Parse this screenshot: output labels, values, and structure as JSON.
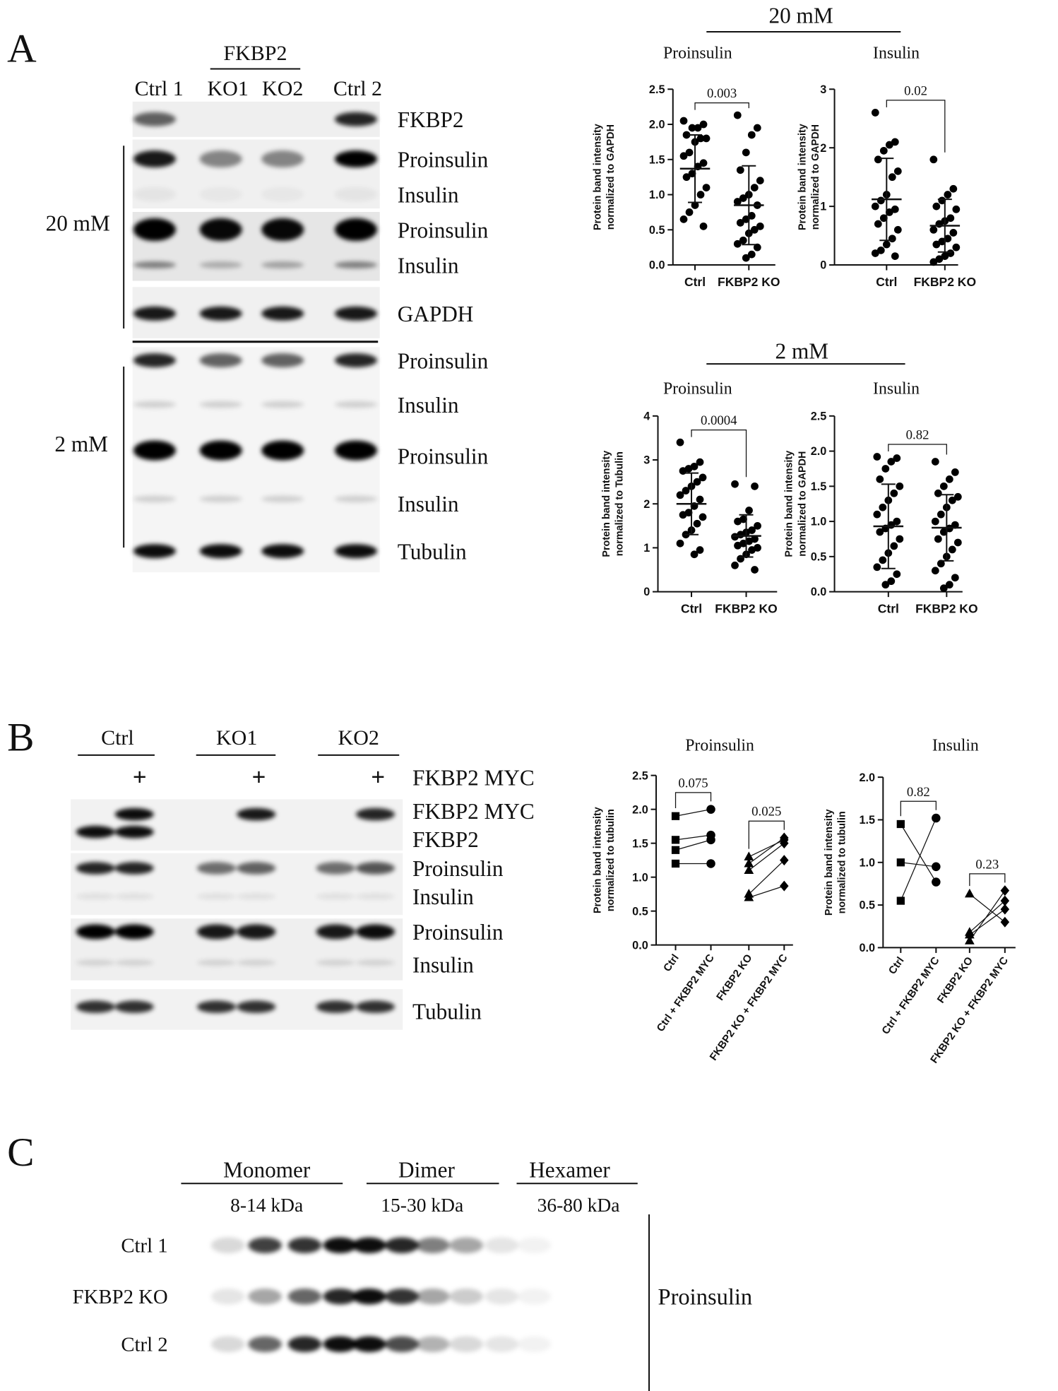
{
  "panel_labels": [
    "A",
    "B",
    "C"
  ],
  "panel_a": {
    "blot": {
      "group": "FKBP2",
      "lanes": [
        "Ctrl 1",
        "KO1",
        "KO2",
        "Ctrl 2"
      ],
      "bands": [
        "FKBP2",
        "Proinsulin",
        "Insulin",
        "Proinsulin",
        "Insulin",
        "GAPDH",
        "Proinsulin",
        "Insulin",
        "Proinsulin",
        "Insulin",
        "Tubulin"
      ],
      "conditions": [
        "20 mM",
        "2 mM"
      ]
    },
    "headers": [
      "20 mM",
      "2 mM"
    ]
  },
  "panel_b": {
    "blot": {
      "lanes": [
        "Ctrl",
        "KO1",
        "KO2"
      ],
      "plus": "+",
      "bands": [
        "FKBP2 MYC",
        "FKBP2 MYC",
        "FKBP2",
        "Proinsulin",
        "Insulin",
        "Proinsulin",
        "Insulin",
        "Tubulin"
      ]
    }
  },
  "panel_c": {
    "columns": [
      "Monomer",
      "Dimer",
      "Hexamer"
    ],
    "sizes": [
      "8-14 kDa",
      "15-30 kDa",
      "36-80 kDa"
    ],
    "rows": [
      "Ctrl 1",
      "FKBP2 KO",
      "Ctrl 2"
    ],
    "band": "Proinsulin"
  },
  "chart_data": [
    {
      "type": "strip",
      "title": "Proinsulin",
      "ylabel": [
        "Protein band intensity",
        "normalized to GAPDH"
      ],
      "categories": [
        "Ctrl",
        "FKBP2 KO"
      ],
      "ylim": [
        0,
        2.5
      ],
      "yticks": [
        {
          "value": 0,
          "label": "0.0"
        },
        0.5,
        {
          "value": 1,
          "label": "1.0"
        },
        1.5,
        {
          "value": 2,
          "label": "2.0"
        },
        2.5
      ],
      "annotation": "0.003",
      "color": "#000000",
      "groups": [
        {
          "values": [
            2.05,
            2.0,
            1.95,
            1.95,
            1.85,
            1.8,
            1.8,
            1.75,
            1.6,
            1.55,
            1.45,
            1.4,
            1.3,
            1.25,
            1.1,
            1.0,
            0.85,
            0.75,
            0.65,
            0.55
          ],
          "mean": 1.37,
          "sd": 0.48
        },
        {
          "values": [
            2.13,
            1.95,
            1.85,
            1.6,
            1.35,
            1.2,
            1.1,
            1.0,
            0.95,
            0.9,
            0.85,
            0.7,
            0.65,
            0.6,
            0.55,
            0.5,
            0.45,
            0.35,
            0.3,
            0.25,
            0.15,
            0.1
          ],
          "mean": 0.85,
          "sd": 0.56
        }
      ]
    },
    {
      "type": "strip",
      "title": "Insulin",
      "ylabel": [
        "Protein band intensity",
        "normalized to GAPDH"
      ],
      "categories": [
        "Ctrl",
        "FKBP2 KO"
      ],
      "ylim": [
        0,
        3
      ],
      "yticks": [
        0,
        1,
        2,
        3
      ],
      "annotation": "0.02",
      "color": "#000000",
      "groups": [
        {
          "values": [
            2.6,
            2.1,
            2.05,
            1.95,
            1.8,
            1.6,
            1.5,
            1.2,
            1.1,
            1.0,
            0.95,
            0.9,
            0.8,
            0.7,
            0.6,
            0.45,
            0.35,
            0.25,
            0.2,
            0.15
          ],
          "mean": 1.12,
          "sd": 0.7
        },
        {
          "values": [
            1.8,
            1.3,
            1.2,
            1.1,
            1.0,
            0.95,
            0.8,
            0.75,
            0.7,
            0.6,
            0.55,
            0.45,
            0.4,
            0.35,
            0.3,
            0.2,
            0.15,
            0.1,
            0.05
          ],
          "mean": 0.67,
          "sd": 0.45
        }
      ]
    },
    {
      "type": "strip",
      "title": "Proinsulin",
      "ylabel": [
        "Protein band intensity",
        "normalized to Tubulin"
      ],
      "categories": [
        "Ctrl",
        "FKBP2 KO"
      ],
      "ylim": [
        0,
        4
      ],
      "yticks": [
        0,
        1,
        2,
        3,
        4
      ],
      "annotation": "0.0004",
      "color": "#000000",
      "groups": [
        {
          "values": [
            3.4,
            2.95,
            2.85,
            2.8,
            2.75,
            2.6,
            2.5,
            2.4,
            2.3,
            2.2,
            2.1,
            1.95,
            1.8,
            1.75,
            1.7,
            1.55,
            1.4,
            1.3,
            1.1,
            0.95,
            0.85
          ],
          "mean": 2.0,
          "sd": 0.7
        },
        {
          "values": [
            2.45,
            2.4,
            1.85,
            1.65,
            1.6,
            1.5,
            1.4,
            1.35,
            1.3,
            1.25,
            1.2,
            1.15,
            1.1,
            1.05,
            1.0,
            0.95,
            0.85,
            0.75,
            0.6,
            0.5
          ],
          "mean": 1.27,
          "sd": 0.48
        }
      ]
    },
    {
      "type": "strip",
      "title": "Insulin",
      "ylabel": [
        "Protein band intensity",
        "normalized to GAPDH"
      ],
      "categories": [
        "Ctrl",
        "FKBP2 KO"
      ],
      "ylim": [
        0,
        2.5
      ],
      "yticks": [
        {
          "value": 0,
          "label": "0.0"
        },
        0.5,
        {
          "value": 1,
          "label": "1.0"
        },
        1.5,
        {
          "value": 2,
          "label": "2.0"
        },
        2.5
      ],
      "annotation": "0.82",
      "color": "#000000",
      "groups": [
        {
          "values": [
            1.92,
            1.9,
            1.85,
            1.75,
            1.6,
            1.5,
            1.4,
            1.3,
            1.2,
            1.1,
            1.0,
            0.95,
            0.9,
            0.85,
            0.75,
            0.65,
            0.55,
            0.45,
            0.35,
            0.25,
            0.15,
            0.1
          ],
          "mean": 0.93,
          "sd": 0.6
        },
        {
          "values": [
            1.85,
            1.7,
            1.6,
            1.5,
            1.4,
            1.35,
            1.3,
            1.2,
            1.1,
            1.0,
            0.95,
            0.9,
            0.85,
            0.75,
            0.7,
            0.6,
            0.5,
            0.4,
            0.3,
            0.2,
            0.1,
            0.05
          ],
          "mean": 0.91,
          "sd": 0.47
        }
      ]
    },
    {
      "type": "paired",
      "title": "Proinsulin",
      "ylabel": [
        "Protein band intensity",
        "normalized to tubulin"
      ],
      "categories": [
        "Ctrl",
        "Ctrl + FKBP2 MYC",
        "FKBP2 KO",
        "FKBP2 KO + FKBP2 MYC"
      ],
      "ylim": [
        0,
        2.5
      ],
      "yticks": [
        {
          "value": 0,
          "label": "0.0"
        },
        0.5,
        {
          "value": 1,
          "label": "1.0"
        },
        1.5,
        {
          "value": 2,
          "label": "2.0"
        },
        2.5
      ],
      "annotations": [
        "0.075",
        "0.025"
      ],
      "markers": [
        "square",
        "circle",
        "triangle",
        "diamond"
      ],
      "color": "#000000",
      "series": [
        {
          "values": [
            1.9,
            2.0,
            null,
            null
          ]
        },
        {
          "values": [
            1.55,
            1.62,
            null,
            null
          ]
        },
        {
          "values": [
            1.4,
            1.55,
            null,
            null
          ]
        },
        {
          "values": [
            1.2,
            1.2,
            null,
            null
          ]
        },
        {
          "values": [
            null,
            null,
            1.3,
            1.55
          ]
        },
        {
          "values": [
            null,
            null,
            1.2,
            1.58
          ]
        },
        {
          "values": [
            null,
            null,
            1.1,
            1.5
          ]
        },
        {
          "values": [
            null,
            null,
            0.75,
            1.25
          ]
        },
        {
          "values": [
            null,
            null,
            0.7,
            0.87
          ]
        }
      ]
    },
    {
      "type": "paired",
      "title": "Insulin",
      "ylabel": [
        "Protein band intensity",
        "normalized to tubulin"
      ],
      "categories": [
        "Ctrl",
        "Ctrl + FKBP2 MYC",
        "FKBP2 KO",
        "FKBP2 KO + FKBP2 MYC"
      ],
      "ylim": [
        0,
        2
      ],
      "yticks": [
        {
          "value": 0,
          "label": "0.0"
        },
        0.5,
        {
          "value": 1,
          "label": "1.0"
        },
        1.5,
        {
          "value": 2,
          "label": "2.0"
        }
      ],
      "annotations": [
        "0.82",
        "0.23"
      ],
      "markers": [
        "square",
        "circle",
        "triangle",
        "diamond"
      ],
      "color": "#000000",
      "series": [
        {
          "values": [
            1.45,
            0.77,
            null,
            null
          ]
        },
        {
          "values": [
            1.0,
            0.95,
            null,
            null
          ]
        },
        {
          "values": [
            0.55,
            1.52,
            null,
            null
          ]
        },
        {
          "values": [
            null,
            null,
            0.63,
            0.3
          ]
        },
        {
          "values": [
            null,
            null,
            0.18,
            0.55
          ]
        },
        {
          "values": [
            null,
            null,
            0.08,
            0.67
          ]
        },
        {
          "values": [
            null,
            null,
            0.15,
            0.45
          ]
        }
      ]
    }
  ]
}
